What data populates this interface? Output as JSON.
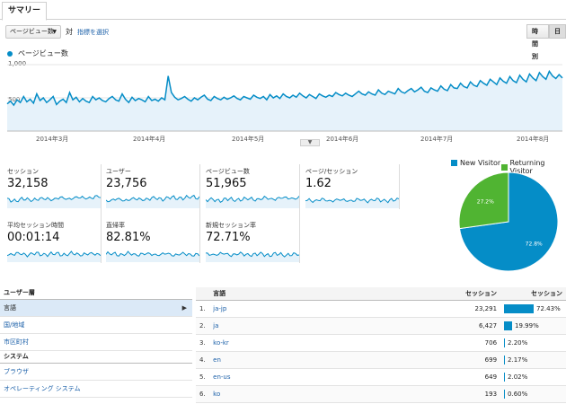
{
  "tab": {
    "label": "サマリー"
  },
  "controls": {
    "metric_select": "ページビュー数",
    "vs": "対",
    "choose_metric": "指標を選択",
    "time_buttons": [
      "時間別",
      "日"
    ]
  },
  "main_chart": {
    "legend": "ページビュー数",
    "y_ticks": [
      "1,000",
      "500"
    ],
    "x_ticks": [
      "2014年3月",
      "2014年4月",
      "2014年5月",
      "2014年6月",
      "2014年7月",
      "2014年8月"
    ]
  },
  "chart_data": [
    {
      "type": "area",
      "series": [
        {
          "name": "ページビュー数",
          "values": [
            410,
            450,
            390,
            470,
            430,
            520,
            440,
            480,
            420,
            560,
            460,
            500,
            430,
            470,
            520,
            400,
            450,
            480,
            430,
            580,
            470,
            510,
            440,
            490,
            450,
            430,
            520,
            470,
            500,
            460,
            440,
            490,
            520,
            470,
            450,
            560,
            480,
            430,
            510,
            460,
            490,
            470,
            440,
            520,
            460,
            480,
            450,
            500,
            470,
            830,
            580,
            510,
            470,
            490,
            520,
            480,
            450,
            500,
            470,
            510,
            540,
            480,
            460,
            520,
            490,
            470,
            510,
            480,
            500,
            530,
            490,
            470,
            520,
            500,
            480,
            540,
            510,
            490,
            520,
            470,
            550,
            500,
            530,
            490,
            560,
            520,
            500,
            540,
            510,
            570,
            530,
            500,
            550,
            520,
            490,
            560,
            530,
            510,
            540,
            520,
            580,
            550,
            530,
            570,
            540,
            520,
            560,
            600,
            560,
            540,
            590,
            560,
            540,
            620,
            570,
            550,
            600,
            580,
            560,
            640,
            590,
            570,
            610,
            640,
            590,
            620,
            660,
            600,
            580,
            650,
            620,
            600,
            680,
            630,
            610,
            700,
            650,
            640,
            720,
            670,
            650,
            740,
            690,
            670,
            760,
            720,
            690,
            780,
            740,
            700,
            800,
            750,
            720,
            820,
            760,
            730,
            840,
            780,
            740,
            860,
            800,
            760,
            880,
            820,
            780,
            900,
            830,
            790,
            850,
            800
          ]
        }
      ],
      "ylim": [
        0,
        1000
      ]
    },
    {
      "type": "pie",
      "categories": [
        "New Visitor",
        "Returning Visitor"
      ],
      "values": [
        72.8,
        27.2
      ],
      "labels": [
        "72.8%",
        "27.2%"
      ],
      "colors": [
        "#058dc7",
        "#50b432"
      ]
    }
  ],
  "stats": [
    {
      "label": "セッション",
      "value": "32,158"
    },
    {
      "label": "ユーザー",
      "value": "23,756"
    },
    {
      "label": "ページビュー数",
      "value": "51,965"
    },
    {
      "label": "ページ/セッション",
      "value": "1.62"
    },
    {
      "label": "平均セッション時間",
      "value": "00:01:14"
    },
    {
      "label": "直帰率",
      "value": "82.81%"
    },
    {
      "label": "新規セッション率",
      "value": "72.71%"
    }
  ],
  "left_panel": {
    "section1": "ユーザー層",
    "items1": [
      "言語",
      "国/地域",
      "市区町村"
    ],
    "section2": "システム",
    "items2": [
      "ブラウザ",
      "オペレーティング システム"
    ]
  },
  "table": {
    "headers": [
      "",
      "言語",
      "セッション",
      "セッション"
    ],
    "rows": [
      {
        "idx": "1.",
        "lang": "ja-jp",
        "sessions": "23,291",
        "pct": "72.43%",
        "frac": 0.7243
      },
      {
        "idx": "2.",
        "lang": "ja",
        "sessions": "6,427",
        "pct": "19.99%",
        "frac": 0.1999
      },
      {
        "idx": "3.",
        "lang": "ko-kr",
        "sessions": "706",
        "pct": "2.20%",
        "frac": 0.022
      },
      {
        "idx": "4.",
        "lang": "en",
        "sessions": "699",
        "pct": "2.17%",
        "frac": 0.0217
      },
      {
        "idx": "5.",
        "lang": "en-us",
        "sessions": "649",
        "pct": "2.02%",
        "frac": 0.0202
      },
      {
        "idx": "6.",
        "lang": "ko",
        "sessions": "193",
        "pct": "0.60%",
        "frac": 0.006
      }
    ]
  },
  "colors": {
    "accent": "#058dc7",
    "green": "#50b432",
    "link": "#1a5fa8",
    "area_fill": "#e6f2fa"
  }
}
